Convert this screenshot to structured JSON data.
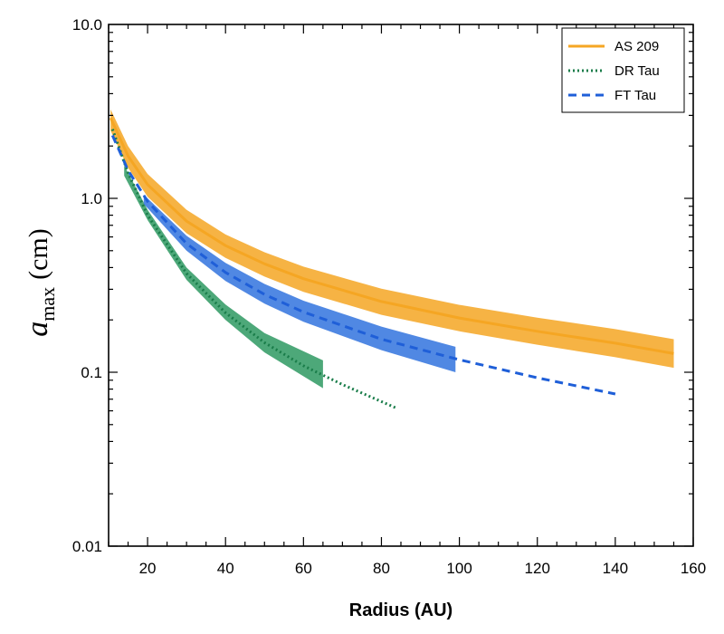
{
  "chart_data": {
    "type": "line",
    "xlabel": "Radius (AU)",
    "ylabel": {
      "main": "a",
      "subscript": "max",
      "unit": "(cm)"
    },
    "xlim": [
      10,
      160
    ],
    "ylim": [
      0.01,
      10
    ],
    "yscale": "log",
    "xticks": [
      20,
      40,
      60,
      80,
      100,
      120,
      140,
      160
    ],
    "yticks": [
      {
        "value": 0.01,
        "label": "0.01"
      },
      {
        "value": 0.1,
        "label": "0.1"
      },
      {
        "value": 1,
        "label": "1.0"
      },
      {
        "value": 10,
        "label": "10.0"
      }
    ],
    "legend_position": "top-right",
    "series": [
      {
        "name": "AS 209",
        "color": "#f5a623",
        "band_color": "#f5a623",
        "style": "solid",
        "x": [
          10.5,
          15,
          20,
          30,
          40,
          50,
          60,
          80,
          100,
          120,
          140,
          155
        ],
        "y": [
          2.9,
          1.75,
          1.2,
          0.74,
          0.535,
          0.42,
          0.345,
          0.255,
          0.205,
          0.172,
          0.147,
          0.128
        ],
        "band_x": [
          10.5,
          15,
          20,
          30,
          40,
          50,
          60,
          80,
          100,
          120,
          140,
          155
        ],
        "band_low": [
          2.45,
          1.5,
          1.02,
          0.63,
          0.455,
          0.355,
          0.29,
          0.214,
          0.172,
          0.144,
          0.122,
          0.106
        ],
        "band_high": [
          3.25,
          2.0,
          1.38,
          0.86,
          0.62,
          0.49,
          0.405,
          0.302,
          0.244,
          0.206,
          0.177,
          0.155
        ]
      },
      {
        "name": "DR Tau",
        "color": "#1a7d4a",
        "band_color": "#3a9e6a",
        "style": "dotted",
        "x": [
          11,
          15,
          20,
          30,
          40,
          50,
          60,
          70,
          84
        ],
        "y": [
          2.5,
          1.4,
          0.8,
          0.37,
          0.22,
          0.148,
          0.109,
          0.085,
          0.062
        ],
        "band_x": [
          14,
          20,
          30,
          40,
          50,
          65
        ],
        "band_low": [
          1.35,
          0.75,
          0.34,
          0.2,
          0.13,
          0.081
        ],
        "band_high": [
          1.55,
          0.86,
          0.4,
          0.245,
          0.168,
          0.117
        ]
      },
      {
        "name": "FT Tau",
        "color": "#1f5fd8",
        "band_color": "#3d7be0",
        "style": "dashed",
        "x": [
          11,
          15,
          20,
          30,
          40,
          50,
          60,
          80,
          100,
          120,
          140
        ],
        "y": [
          2.3,
          1.45,
          0.96,
          0.55,
          0.375,
          0.28,
          0.222,
          0.155,
          0.118,
          0.093,
          0.075
        ],
        "band_x": [
          19,
          30,
          40,
          50,
          60,
          80,
          99
        ],
        "band_low": [
          0.93,
          0.5,
          0.335,
          0.248,
          0.195,
          0.134,
          0.1
        ],
        "band_high": [
          1.05,
          0.61,
          0.425,
          0.322,
          0.258,
          0.183,
          0.14
        ]
      }
    ]
  }
}
